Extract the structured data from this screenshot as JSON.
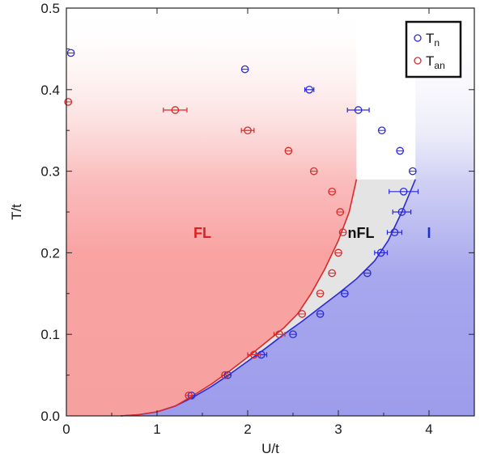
{
  "chart_data": {
    "type": "scatter",
    "xlabel": "U/t",
    "ylabel": "T/t",
    "xlim": [
      0,
      4.5
    ],
    "ylim": [
      0,
      0.5
    ],
    "x_ticks": [
      "0",
      "1",
      "2",
      "3",
      "4"
    ],
    "y_ticks": [
      "0.0",
      "0.1",
      "0.2",
      "0.3",
      "0.4",
      "0.5"
    ],
    "grid": false,
    "legend_position": "top-right",
    "legend": [
      {
        "symbol": "T",
        "sub": "n",
        "color": "#2a2ad8"
      },
      {
        "symbol": "T",
        "sub": "an",
        "color": "#d82a2a"
      }
    ],
    "regions": [
      {
        "label": "FL",
        "color": "#e02020",
        "x": 1.5,
        "y": 0.225
      },
      {
        "label": "nFL",
        "color": "#111111",
        "x": 3.25,
        "y": 0.225
      },
      {
        "label": "I",
        "color": "#1c2fd0",
        "x": 4.0,
        "y": 0.225
      }
    ],
    "series": [
      {
        "key": "Tn",
        "color": "#2a2ad8",
        "points": [
          {
            "x": 0.05,
            "y": 0.445,
            "xerr": 0
          },
          {
            "x": 1.97,
            "y": 0.425,
            "xerr": 0
          },
          {
            "x": 2.68,
            "y": 0.4,
            "xerr": 0.05
          },
          {
            "x": 3.22,
            "y": 0.375,
            "xerr": 0.12
          },
          {
            "x": 3.48,
            "y": 0.35,
            "xerr": 0
          },
          {
            "x": 3.68,
            "y": 0.325,
            "xerr": 0
          },
          {
            "x": 3.82,
            "y": 0.3,
            "xerr": 0
          },
          {
            "x": 3.72,
            "y": 0.275,
            "xerr": 0.16
          },
          {
            "x": 3.7,
            "y": 0.25,
            "xerr": 0.1
          },
          {
            "x": 3.62,
            "y": 0.225,
            "xerr": 0.08
          },
          {
            "x": 3.47,
            "y": 0.2,
            "xerr": 0.07
          },
          {
            "x": 3.32,
            "y": 0.175,
            "xerr": 0
          },
          {
            "x": 3.07,
            "y": 0.15,
            "xerr": 0
          },
          {
            "x": 2.8,
            "y": 0.125,
            "xerr": 0
          },
          {
            "x": 2.5,
            "y": 0.1,
            "xerr": 0
          },
          {
            "x": 2.15,
            "y": 0.075,
            "xerr": 0.06
          },
          {
            "x": 1.78,
            "y": 0.05,
            "xerr": 0
          },
          {
            "x": 1.38,
            "y": 0.025,
            "xerr": 0
          }
        ]
      },
      {
        "key": "Tan",
        "color": "#d82a2a",
        "points": [
          {
            "x": 0.02,
            "y": 0.385,
            "xerr": 0
          },
          {
            "x": 1.2,
            "y": 0.375,
            "xerr": 0.13
          },
          {
            "x": 2.0,
            "y": 0.35,
            "xerr": 0.07
          },
          {
            "x": 2.45,
            "y": 0.325,
            "xerr": 0
          },
          {
            "x": 2.73,
            "y": 0.3,
            "xerr": 0
          },
          {
            "x": 2.93,
            "y": 0.275,
            "xerr": 0
          },
          {
            "x": 3.02,
            "y": 0.25,
            "xerr": 0
          },
          {
            "x": 3.05,
            "y": 0.225,
            "xerr": 0
          },
          {
            "x": 3.0,
            "y": 0.2,
            "xerr": 0
          },
          {
            "x": 2.93,
            "y": 0.175,
            "xerr": 0
          },
          {
            "x": 2.8,
            "y": 0.15,
            "xerr": 0
          },
          {
            "x": 2.6,
            "y": 0.125,
            "xerr": 0
          },
          {
            "x": 2.35,
            "y": 0.1,
            "xerr": 0.06
          },
          {
            "x": 2.07,
            "y": 0.075,
            "xerr": 0.07
          },
          {
            "x": 1.75,
            "y": 0.05,
            "xerr": 0
          },
          {
            "x": 1.35,
            "y": 0.025,
            "xerr": 0
          }
        ]
      }
    ],
    "boundary_curves": [
      {
        "key": "nFL-I",
        "color": "#2a2ad8",
        "x": [
          0.6,
          0.8,
          1.0,
          1.2,
          1.4,
          1.6,
          1.8,
          2.0,
          2.2,
          2.4,
          2.6,
          2.8,
          3.0,
          3.2,
          3.4,
          3.55,
          3.7,
          3.85
        ],
        "y": [
          0.0,
          0.0015,
          0.005,
          0.012,
          0.023,
          0.036,
          0.051,
          0.067,
          0.083,
          0.1,
          0.116,
          0.133,
          0.15,
          0.168,
          0.19,
          0.215,
          0.25,
          0.29
        ]
      },
      {
        "key": "FL-nFL",
        "color": "#d82a2a",
        "x": [
          0.6,
          0.8,
          1.0,
          1.2,
          1.4,
          1.6,
          1.8,
          2.0,
          2.2,
          2.4,
          2.55,
          2.7,
          2.85,
          3.0,
          3.12,
          3.2
        ],
        "y": [
          0.0,
          0.0015,
          0.005,
          0.012,
          0.025,
          0.039,
          0.055,
          0.072,
          0.09,
          0.108,
          0.125,
          0.15,
          0.18,
          0.215,
          0.25,
          0.29
        ]
      }
    ]
  }
}
